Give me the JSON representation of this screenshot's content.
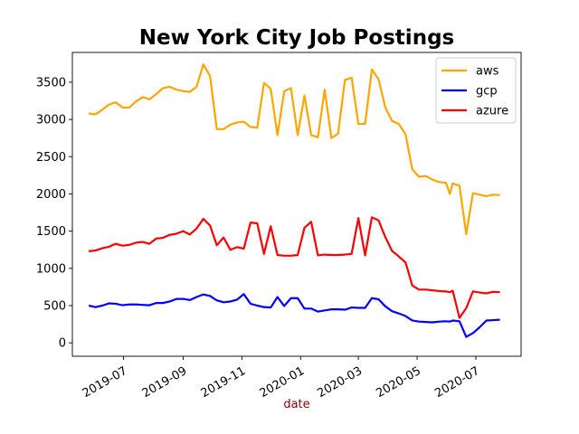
{
  "chart_data": {
    "type": "line",
    "title": "New York City Job Postings",
    "xlabel": "date",
    "xlabel_color": "#8b0000",
    "ylabel": "",
    "ylim": [
      -180,
      3900
    ],
    "xlim": [
      "2019-05-09",
      "2020-08-17"
    ],
    "yticks": [
      0,
      500,
      1000,
      1500,
      2000,
      2500,
      3000,
      3500
    ],
    "xticks": [
      {
        "date": "2019-07-01",
        "label": "2019-07"
      },
      {
        "date": "2019-09-01",
        "label": "2019-09"
      },
      {
        "date": "2019-11-01",
        "label": "2019-11"
      },
      {
        "date": "2020-01-01",
        "label": "2020-01"
      },
      {
        "date": "2020-03-01",
        "label": "2020-03"
      },
      {
        "date": "2020-05-01",
        "label": "2020-05"
      },
      {
        "date": "2020-07-01",
        "label": "2020-07"
      }
    ],
    "grid": false,
    "legend_position": "upper-right",
    "series": [
      {
        "name": "aws",
        "color": "#ffa500",
        "points": [
          [
            "2019-05-26",
            3080
          ],
          [
            "2019-06-02",
            3070
          ],
          [
            "2019-06-09",
            3130
          ],
          [
            "2019-06-16",
            3200
          ],
          [
            "2019-06-23",
            3230
          ],
          [
            "2019-06-30",
            3160
          ],
          [
            "2019-07-07",
            3160
          ],
          [
            "2019-07-14",
            3240
          ],
          [
            "2019-07-21",
            3300
          ],
          [
            "2019-07-28",
            3270
          ],
          [
            "2019-08-04",
            3340
          ],
          [
            "2019-08-11",
            3420
          ],
          [
            "2019-08-18",
            3440
          ],
          [
            "2019-08-25",
            3400
          ],
          [
            "2019-09-01",
            3380
          ],
          [
            "2019-09-08",
            3370
          ],
          [
            "2019-09-15",
            3440
          ],
          [
            "2019-09-22",
            3740
          ],
          [
            "2019-09-29",
            3580
          ],
          [
            "2019-10-06",
            2870
          ],
          [
            "2019-10-13",
            2870
          ],
          [
            "2019-10-20",
            2930
          ],
          [
            "2019-10-27",
            2960
          ],
          [
            "2019-11-03",
            2970
          ],
          [
            "2019-11-10",
            2900
          ],
          [
            "2019-11-17",
            2890
          ],
          [
            "2019-11-24",
            3490
          ],
          [
            "2019-12-01",
            3410
          ],
          [
            "2019-12-08",
            2790
          ],
          [
            "2019-12-15",
            3380
          ],
          [
            "2019-12-22",
            3420
          ],
          [
            "2019-12-29",
            2790
          ],
          [
            "2020-01-05",
            3320
          ],
          [
            "2020-01-12",
            2790
          ],
          [
            "2020-01-19",
            2760
          ],
          [
            "2020-01-26",
            3400
          ],
          [
            "2020-02-02",
            2750
          ],
          [
            "2020-02-09",
            2810
          ],
          [
            "2020-02-16",
            3530
          ],
          [
            "2020-02-23",
            3560
          ],
          [
            "2020-03-01",
            2940
          ],
          [
            "2020-03-08",
            2940
          ],
          [
            "2020-03-15",
            3670
          ],
          [
            "2020-03-22",
            3540
          ],
          [
            "2020-03-29",
            3160
          ],
          [
            "2020-04-05",
            2980
          ],
          [
            "2020-04-12",
            2940
          ],
          [
            "2020-04-19",
            2800
          ],
          [
            "2020-04-26",
            2330
          ],
          [
            "2020-05-03",
            2230
          ],
          [
            "2020-05-10",
            2240
          ],
          [
            "2020-05-17",
            2190
          ],
          [
            "2020-05-24",
            2160
          ],
          [
            "2020-05-31",
            2150
          ],
          [
            "2020-06-04",
            2000
          ],
          [
            "2020-06-07",
            2140
          ],
          [
            "2020-06-14",
            2110
          ],
          [
            "2020-06-21",
            1460
          ],
          [
            "2020-06-28",
            2010
          ],
          [
            "2020-07-05",
            1990
          ],
          [
            "2020-07-12",
            1970
          ],
          [
            "2020-07-19",
            1990
          ],
          [
            "2020-07-26",
            1985
          ]
        ]
      },
      {
        "name": "gcp",
        "color": "#0000ff",
        "points": [
          [
            "2019-05-26",
            500
          ],
          [
            "2019-06-02",
            480
          ],
          [
            "2019-06-09",
            500
          ],
          [
            "2019-06-16",
            530
          ],
          [
            "2019-06-23",
            525
          ],
          [
            "2019-06-30",
            505
          ],
          [
            "2019-07-07",
            515
          ],
          [
            "2019-07-14",
            515
          ],
          [
            "2019-07-21",
            510
          ],
          [
            "2019-07-28",
            505
          ],
          [
            "2019-08-04",
            535
          ],
          [
            "2019-08-11",
            535
          ],
          [
            "2019-08-18",
            555
          ],
          [
            "2019-08-25",
            590
          ],
          [
            "2019-09-01",
            590
          ],
          [
            "2019-09-08",
            575
          ],
          [
            "2019-09-15",
            615
          ],
          [
            "2019-09-22",
            650
          ],
          [
            "2019-09-29",
            630
          ],
          [
            "2019-10-06",
            570
          ],
          [
            "2019-10-13",
            545
          ],
          [
            "2019-10-20",
            555
          ],
          [
            "2019-10-27",
            580
          ],
          [
            "2019-11-03",
            655
          ],
          [
            "2019-11-10",
            525
          ],
          [
            "2019-11-17",
            500
          ],
          [
            "2019-11-24",
            480
          ],
          [
            "2019-12-01",
            475
          ],
          [
            "2019-12-08",
            615
          ],
          [
            "2019-12-15",
            495
          ],
          [
            "2019-12-22",
            600
          ],
          [
            "2019-12-29",
            600
          ],
          [
            "2020-01-05",
            460
          ],
          [
            "2020-01-12",
            460
          ],
          [
            "2020-01-19",
            420
          ],
          [
            "2020-01-26",
            435
          ],
          [
            "2020-02-02",
            450
          ],
          [
            "2020-02-09",
            450
          ],
          [
            "2020-02-16",
            445
          ],
          [
            "2020-02-23",
            475
          ],
          [
            "2020-03-01",
            470
          ],
          [
            "2020-03-08",
            470
          ],
          [
            "2020-03-15",
            600
          ],
          [
            "2020-03-22",
            585
          ],
          [
            "2020-03-29",
            490
          ],
          [
            "2020-04-05",
            425
          ],
          [
            "2020-04-12",
            395
          ],
          [
            "2020-04-19",
            360
          ],
          [
            "2020-04-26",
            300
          ],
          [
            "2020-05-03",
            285
          ],
          [
            "2020-05-10",
            280
          ],
          [
            "2020-05-17",
            275
          ],
          [
            "2020-05-24",
            285
          ],
          [
            "2020-05-31",
            290
          ],
          [
            "2020-06-04",
            285
          ],
          [
            "2020-06-07",
            300
          ],
          [
            "2020-06-14",
            290
          ],
          [
            "2020-06-21",
            80
          ],
          [
            "2020-06-28",
            130
          ],
          [
            "2020-07-05",
            210
          ],
          [
            "2020-07-12",
            300
          ],
          [
            "2020-07-19",
            305
          ],
          [
            "2020-07-26",
            310
          ]
        ]
      },
      {
        "name": "azure",
        "color": "#ff0000",
        "points": [
          [
            "2019-05-26",
            1230
          ],
          [
            "2019-06-02",
            1240
          ],
          [
            "2019-06-09",
            1270
          ],
          [
            "2019-06-16",
            1290
          ],
          [
            "2019-06-23",
            1330
          ],
          [
            "2019-06-30",
            1305
          ],
          [
            "2019-07-07",
            1315
          ],
          [
            "2019-07-14",
            1345
          ],
          [
            "2019-07-21",
            1355
          ],
          [
            "2019-07-28",
            1330
          ],
          [
            "2019-08-04",
            1400
          ],
          [
            "2019-08-11",
            1410
          ],
          [
            "2019-08-18",
            1450
          ],
          [
            "2019-08-25",
            1465
          ],
          [
            "2019-09-01",
            1500
          ],
          [
            "2019-09-08",
            1455
          ],
          [
            "2019-09-15",
            1535
          ],
          [
            "2019-09-22",
            1665
          ],
          [
            "2019-09-29",
            1575
          ],
          [
            "2019-10-06",
            1310
          ],
          [
            "2019-10-13",
            1415
          ],
          [
            "2019-10-20",
            1250
          ],
          [
            "2019-10-27",
            1285
          ],
          [
            "2019-11-03",
            1265
          ],
          [
            "2019-11-10",
            1615
          ],
          [
            "2019-11-17",
            1605
          ],
          [
            "2019-11-24",
            1195
          ],
          [
            "2019-12-01",
            1565
          ],
          [
            "2019-12-08",
            1180
          ],
          [
            "2019-12-15",
            1170
          ],
          [
            "2019-12-22",
            1170
          ],
          [
            "2019-12-29",
            1180
          ],
          [
            "2020-01-05",
            1545
          ],
          [
            "2020-01-12",
            1625
          ],
          [
            "2020-01-19",
            1175
          ],
          [
            "2020-01-26",
            1185
          ],
          [
            "2020-02-02",
            1180
          ],
          [
            "2020-02-09",
            1180
          ],
          [
            "2020-02-16",
            1185
          ],
          [
            "2020-02-23",
            1195
          ],
          [
            "2020-03-01",
            1675
          ],
          [
            "2020-03-08",
            1175
          ],
          [
            "2020-03-15",
            1685
          ],
          [
            "2020-03-22",
            1645
          ],
          [
            "2020-03-29",
            1420
          ],
          [
            "2020-04-05",
            1235
          ],
          [
            "2020-04-12",
            1160
          ],
          [
            "2020-04-19",
            1080
          ],
          [
            "2020-04-26",
            770
          ],
          [
            "2020-05-03",
            715
          ],
          [
            "2020-05-10",
            715
          ],
          [
            "2020-05-17",
            705
          ],
          [
            "2020-05-24",
            695
          ],
          [
            "2020-05-31",
            690
          ],
          [
            "2020-06-04",
            680
          ],
          [
            "2020-06-07",
            700
          ],
          [
            "2020-06-14",
            335
          ],
          [
            "2020-06-21",
            465
          ],
          [
            "2020-06-28",
            690
          ],
          [
            "2020-07-05",
            675
          ],
          [
            "2020-07-12",
            665
          ],
          [
            "2020-07-19",
            685
          ],
          [
            "2020-07-26",
            680
          ]
        ]
      }
    ]
  }
}
